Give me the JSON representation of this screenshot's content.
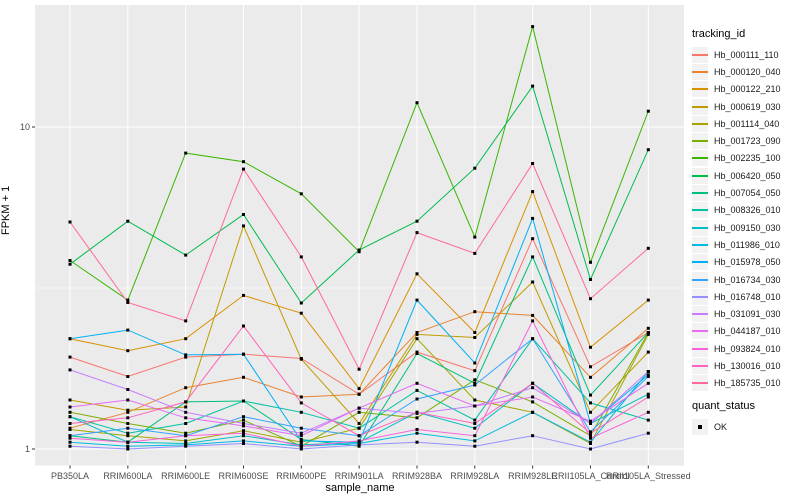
{
  "figure": {
    "background": "#FFFFFF",
    "panel_background": "#EBEBEB",
    "grid_color": "#FFFFFF",
    "axis_text_color": "#4D4D4D",
    "point_color": "#000000"
  },
  "chart_data": {
    "type": "line",
    "title": "",
    "xlabel": "sample_name",
    "ylabel": "FPKM + 1",
    "y_scale": "log10",
    "y_ticks": [
      "1",
      "10"
    ],
    "ylim": [
      0.97,
      24
    ],
    "grid": true,
    "legend_position": "right",
    "legend_title": "tracking_id",
    "shape_legend_title": "quant_status",
    "shape_legend_items": [
      {
        "label": "OK",
        "marker": "black-square"
      }
    ],
    "categories": [
      "PB350LA",
      "RRIM600LA",
      "RRIM600LE",
      "RRIM600SE",
      "RRIM600PE",
      "RRIM901LA",
      "RRIM928BA",
      "RRIM928LA",
      "RRIM928LE",
      "RRII105LA_Control",
      "RRII105LA_Stressed"
    ],
    "series": [
      {
        "name": "Hb_000111_110",
        "color": "#F8766D",
        "values": [
          1.93,
          1.68,
          1.93,
          1.97,
          1.91,
          1.48,
          2.0,
          1.75,
          4.5,
          1.8,
          2.3
        ]
      },
      {
        "name": "Hb_000120_040",
        "color": "#EA8331",
        "values": [
          1.16,
          1.3,
          1.55,
          1.67,
          1.45,
          1.48,
          2.3,
          2.67,
          2.6,
          1.67,
          2.37
        ]
      },
      {
        "name": "Hb_000122_210",
        "color": "#D89000",
        "values": [
          2.2,
          2.02,
          2.2,
          3.0,
          2.64,
          1.54,
          3.5,
          2.3,
          6.3,
          2.07,
          2.9
        ]
      },
      {
        "name": "Hb_000619_030",
        "color": "#C09B00",
        "values": [
          1.42,
          1.32,
          1.35,
          4.93,
          1.9,
          1.2,
          2.27,
          2.22,
          3.3,
          1.3,
          2.0
        ]
      },
      {
        "name": "Hb_001114_040",
        "color": "#A3A500",
        "values": [
          1.15,
          1.1,
          1.06,
          1.14,
          1.05,
          1.16,
          2.2,
          1.42,
          1.3,
          1.04,
          2.27
        ]
      },
      {
        "name": "Hb_001723_090",
        "color": "#7CAE00",
        "values": [
          1.3,
          1.2,
          1.12,
          1.23,
          1.02,
          1.3,
          1.25,
          1.64,
          1.4,
          1.1,
          2.3
        ]
      },
      {
        "name": "Hb_002235_100",
        "color": "#39B600",
        "values": [
          3.85,
          2.9,
          8.3,
          7.8,
          6.2,
          4.1,
          11.9,
          4.55,
          20.5,
          3.8,
          11.2
        ]
      },
      {
        "name": "Hb_006420_050",
        "color": "#00BB4E",
        "values": [
          3.75,
          5.1,
          4.0,
          5.35,
          2.84,
          4.15,
          5.1,
          7.45,
          13.4,
          3.36,
          8.5
        ]
      },
      {
        "name": "Hb_007054_050",
        "color": "#00BF7D",
        "values": [
          1.1,
          1.05,
          1.4,
          1.41,
          1.07,
          1.02,
          1.98,
          1.6,
          3.95,
          1.47,
          2.3
        ]
      },
      {
        "name": "Hb_008326_010",
        "color": "#00C1A3",
        "values": [
          1.26,
          1.12,
          1.2,
          1.41,
          1.3,
          1.16,
          1.52,
          1.23,
          2.2,
          1.39,
          1.23
        ]
      },
      {
        "name": "Hb_009150_030",
        "color": "#00BFC4",
        "values": [
          1.26,
          1.05,
          1.04,
          1.1,
          1.03,
          1.05,
          1.3,
          1.16,
          1.6,
          1.2,
          1.48
        ]
      },
      {
        "name": "Hb_011986_010",
        "color": "#00BAE0",
        "values": [
          1.05,
          1.02,
          1.03,
          1.06,
          1.02,
          1.04,
          1.12,
          1.06,
          1.3,
          1.05,
          1.74
        ]
      },
      {
        "name": "Hb_015978_050",
        "color": "#00B0F6",
        "values": [
          2.2,
          2.34,
          1.96,
          1.97,
          1.06,
          1.05,
          2.9,
          1.85,
          5.2,
          1.2,
          1.7
        ]
      },
      {
        "name": "Hb_016734_030",
        "color": "#35A2FF",
        "values": [
          1.1,
          1.16,
          1.1,
          1.26,
          1.16,
          1.1,
          1.43,
          1.58,
          2.2,
          1.13,
          1.68
        ]
      },
      {
        "name": "Hb_016748_010",
        "color": "#9590FF",
        "values": [
          1.02,
          1.0,
          1.02,
          1.04,
          1.0,
          1.03,
          1.05,
          1.02,
          1.1,
          1.0,
          1.12
        ]
      },
      {
        "name": "Hb_031091_030",
        "color": "#C77CFF",
        "values": [
          1.76,
          1.53,
          1.3,
          1.2,
          1.12,
          1.34,
          1.29,
          1.36,
          1.55,
          1.2,
          1.74
        ]
      },
      {
        "name": "Hb_044187_010",
        "color": "#E76BF3",
        "values": [
          1.35,
          1.42,
          1.25,
          1.18,
          1.1,
          1.34,
          1.6,
          1.36,
          1.45,
          1.22,
          1.6
        ]
      },
      {
        "name": "Hb_093824_010",
        "color": "#FA62DB",
        "values": [
          1.08,
          1.05,
          1.1,
          1.12,
          1.02,
          1.06,
          1.15,
          1.1,
          2.5,
          1.08,
          1.3
        ]
      },
      {
        "name": "Hb_130016_010",
        "color": "#FF62BC",
        "values": [
          1.2,
          1.25,
          1.4,
          2.41,
          1.39,
          1.1,
          1.3,
          1.2,
          1.6,
          1.12,
          1.45
        ]
      },
      {
        "name": "Hb_185735_010",
        "color": "#FF6A98",
        "values": [
          5.07,
          2.85,
          2.5,
          7.4,
          3.95,
          1.77,
          4.7,
          4.05,
          7.7,
          2.93,
          4.2
        ]
      }
    ]
  }
}
